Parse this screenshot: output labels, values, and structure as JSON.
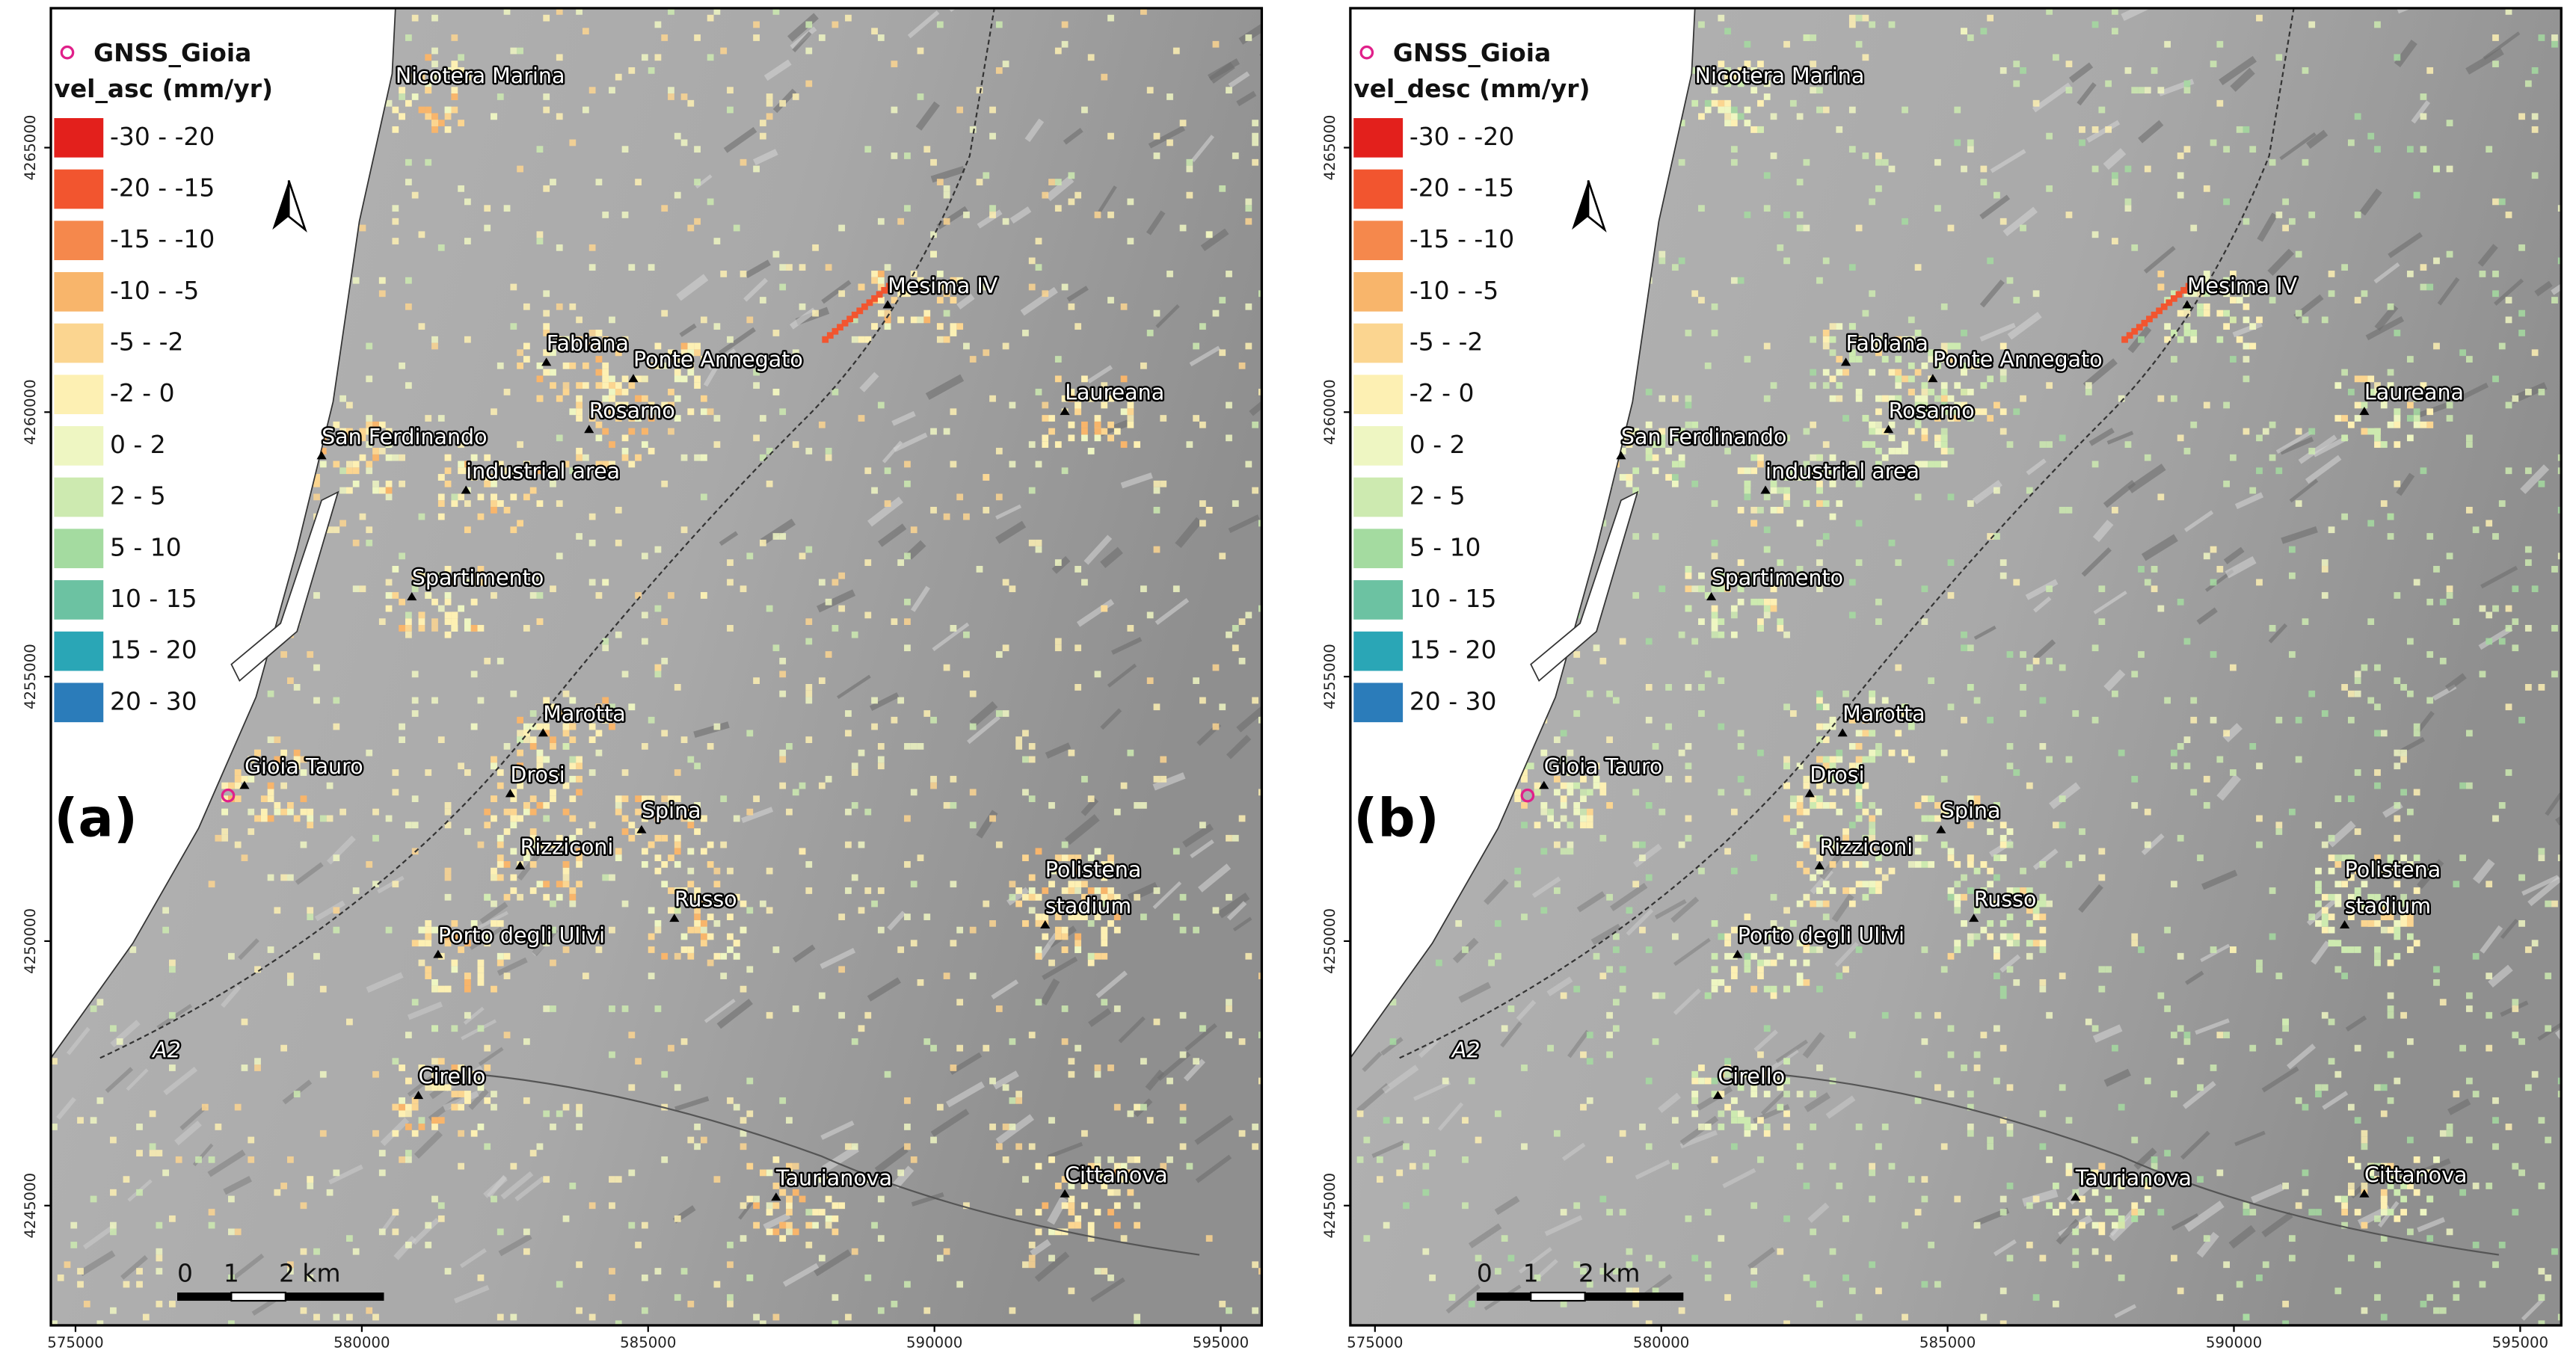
{
  "panels": [
    {
      "label": "(a)",
      "legend": {
        "point_layer": "GNSS_Gioia",
        "title": "vel_asc (mm/yr)",
        "classes": [
          {
            "label": "-30 - -20",
            "color": "#e3201c"
          },
          {
            "label": "-20 - -15",
            "color": "#f2552f"
          },
          {
            "label": "-15 - -10",
            "color": "#f5884c"
          },
          {
            "label": "-10 - -5",
            "color": "#f8b56b"
          },
          {
            "label": "-5 - -2",
            "color": "#fbd590"
          },
          {
            "label": "-2 - 0",
            "color": "#fdf0b3"
          },
          {
            "label": "0 - 2",
            "color": "#eef6c2"
          },
          {
            "label": "2 - 5",
            "color": "#cdeab0"
          },
          {
            "label": "5 - 10",
            "color": "#a4dba0"
          },
          {
            "label": "10 - 15",
            "color": "#6cc2a2"
          },
          {
            "label": "15 - 20",
            "color": "#2aa6b6"
          },
          {
            "label": "20 - 30",
            "color": "#2b7cba"
          }
        ]
      },
      "places": [
        "Nicotera Marina",
        "Mesima IV",
        "Fabiana",
        "Ponte Annegato",
        "Laureana",
        "Rosarno",
        "San Ferdinando",
        "industrial area",
        "Spartimento",
        "Marotta",
        "Gioia Tauro",
        "Drosi",
        "Spina",
        "Rizziconi",
        "Polistena",
        "stadium",
        "Russo",
        "Porto degli Ulivi",
        "Cirello",
        "Taurianova",
        "Cittanova"
      ],
      "road": "A2",
      "scale_bar": [
        "0",
        "1",
        "2 km"
      ],
      "xlim": [
        574570,
        595716
      ],
      "ylim": [
        4242736,
        4267636
      ],
      "xticks": [
        575000,
        580000,
        585000,
        590000,
        595000
      ],
      "yticks": [
        4245000,
        4250000,
        4255000,
        4260000,
        4265000
      ]
    },
    {
      "label": "(b)",
      "legend": {
        "point_layer": "GNSS_Gioia",
        "title": "vel_desc (mm/yr)",
        "classes": [
          {
            "label": "-30 - -20",
            "color": "#e3201c"
          },
          {
            "label": "-20 - -15",
            "color": "#f2552f"
          },
          {
            "label": "-15 - -10",
            "color": "#f5884c"
          },
          {
            "label": "-10 - -5",
            "color": "#f8b56b"
          },
          {
            "label": "-5 - -2",
            "color": "#fbd590"
          },
          {
            "label": "-2 - 0",
            "color": "#fdf0b3"
          },
          {
            "label": "0 - 2",
            "color": "#eef6c2"
          },
          {
            "label": "2 - 5",
            "color": "#cdeab0"
          },
          {
            "label": "5 - 10",
            "color": "#a4dba0"
          },
          {
            "label": "10 - 15",
            "color": "#6cc2a2"
          },
          {
            "label": "15 - 20",
            "color": "#2aa6b6"
          },
          {
            "label": "20 - 30",
            "color": "#2b7cba"
          }
        ]
      },
      "places": [
        "Nicotera Marina",
        "Mesima IV",
        "Fabiana",
        "Ponte Annegato",
        "Laureana",
        "Rosarno",
        "San Ferdinando",
        "industrial area",
        "Spartimento",
        "Marotta",
        "Gioia Tauro",
        "Drosi",
        "Spina",
        "Rizziconi",
        "Polistena",
        "stadium",
        "Russo",
        "Porto degli Ulivi",
        "Cirello",
        "Taurianova",
        "Cittanova"
      ],
      "road": "A2",
      "scale_bar": [
        "0",
        "1",
        "2 km"
      ],
      "xlim": [
        574570,
        595716
      ],
      "ylim": [
        4242736,
        4267636
      ],
      "xticks": [
        575000,
        580000,
        585000,
        590000,
        595000
      ],
      "yticks": [
        4245000,
        4250000,
        4255000,
        4260000,
        4265000
      ]
    }
  ]
}
